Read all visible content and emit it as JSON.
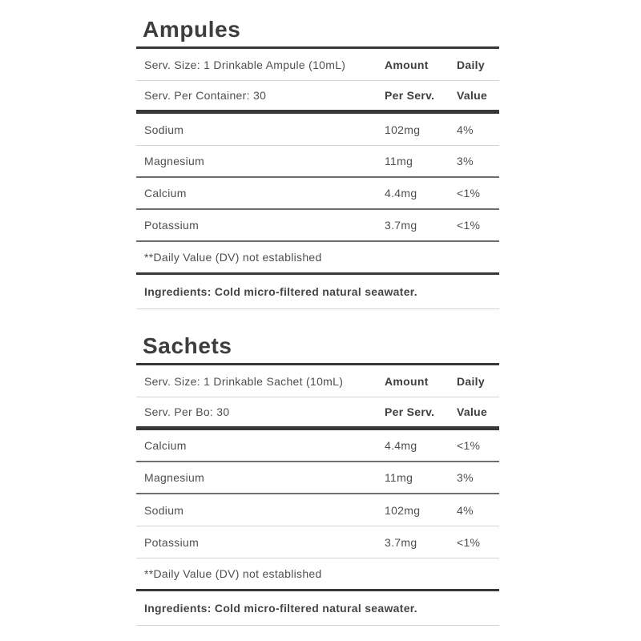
{
  "colors": {
    "background": "#ffffff",
    "heading_text": "#3d3d3d",
    "body_text": "#4f4f4f",
    "rule_heavy": "#383838",
    "rule_dark": "#6e6e6e",
    "rule_light": "#d4d4d4"
  },
  "sections": [
    {
      "title": "Ampules",
      "serving_rows": [
        {
          "label": "Serv. Size: 1 Drinkable Ampule (10mL)",
          "col1": "Amount",
          "col2": "Daily"
        },
        {
          "label": "Serv. Per Container: 30",
          "col1": "Per Serv.",
          "col2": "Value"
        }
      ],
      "nutrients": [
        {
          "name": "Sodium",
          "amount": "102mg",
          "daily": "4%"
        },
        {
          "name": "Magnesium",
          "amount": "11mg",
          "daily": "3%"
        },
        {
          "name": "Calcium",
          "amount": "4.4mg",
          "daily": "<1%"
        },
        {
          "name": "Potassium",
          "amount": "3.7mg",
          "daily": "<1%"
        }
      ],
      "footnote": "**Daily Value (DV) not established",
      "ingredients": "Ingredients: Cold micro-filtered natural seawater."
    },
    {
      "title": "Sachets",
      "serving_rows": [
        {
          "label": "Serv. Size: 1 Drinkable Sachet (10mL)",
          "col1": "Amount",
          "col2": "Daily"
        },
        {
          "label": "Serv. Per Bo: 30",
          "col1": "Per Serv.",
          "col2": "Value"
        }
      ],
      "nutrients": [
        {
          "name": "Calcium",
          "amount": "4.4mg",
          "daily": "<1%"
        },
        {
          "name": "Magnesium",
          "amount": "11mg",
          "daily": "3%"
        },
        {
          "name": "Sodium",
          "amount": "102mg",
          "daily": "4%"
        },
        {
          "name": "Potassium",
          "amount": "3.7mg",
          "daily": "<1%"
        }
      ],
      "footnote": "**Daily Value (DV) not established",
      "ingredients": "Ingredients: Cold micro-filtered natural seawater."
    }
  ]
}
